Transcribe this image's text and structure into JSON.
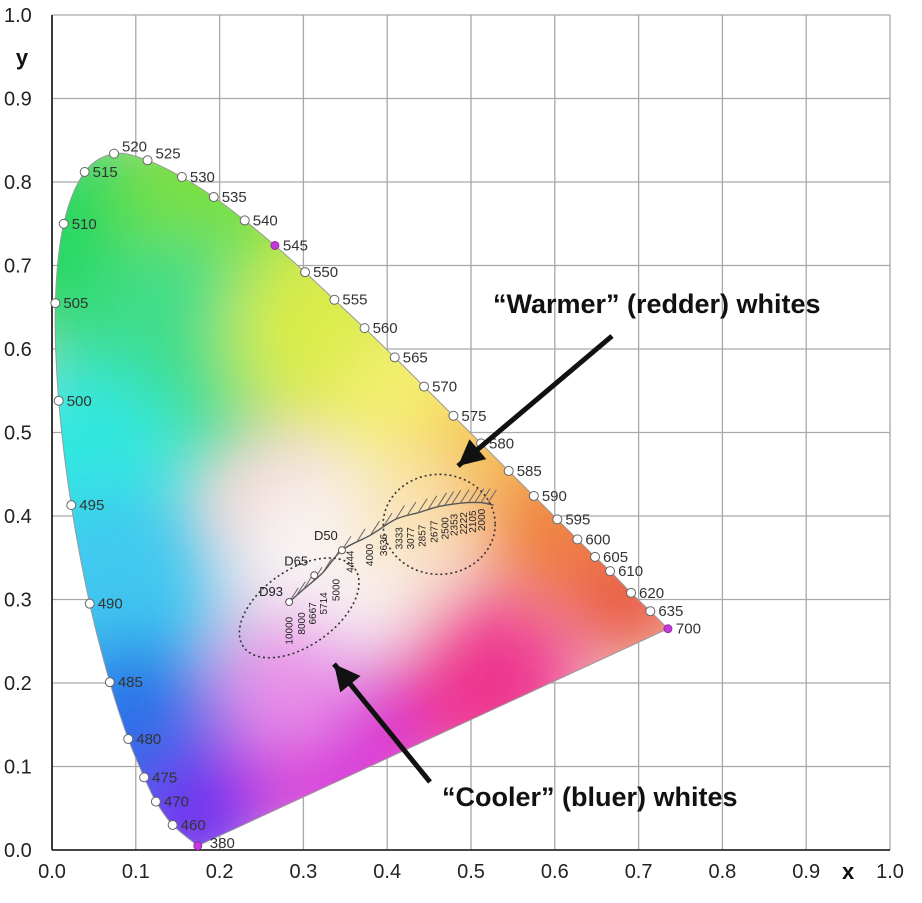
{
  "chart_data": {
    "type": "scatter",
    "xlabel": "x",
    "ylabel": "y",
    "xlim": [
      0.0,
      1.0
    ],
    "ylim": [
      0.0,
      1.0
    ],
    "grid": true,
    "x_ticks": [
      "0.0",
      "0.1",
      "0.2",
      "0.3",
      "0.4",
      "0.5",
      "0.6",
      "0.7",
      "0.8",
      "0.9",
      "1.0"
    ],
    "y_ticks": [
      "0.0",
      "0.1",
      "0.2",
      "0.3",
      "0.4",
      "0.5",
      "0.6",
      "0.7",
      "0.8",
      "0.9",
      "1.0"
    ],
    "spectral_locus": [
      {
        "nm": "380",
        "x": 0.174,
        "y": 0.005,
        "marker": "purple"
      },
      {
        "nm": "460",
        "x": 0.144,
        "y": 0.03,
        "marker": "white"
      },
      {
        "nm": "470",
        "x": 0.124,
        "y": 0.058,
        "marker": "white"
      },
      {
        "nm": "475",
        "x": 0.11,
        "y": 0.087,
        "marker": "white"
      },
      {
        "nm": "480",
        "x": 0.091,
        "y": 0.133,
        "marker": "white"
      },
      {
        "nm": "485",
        "x": 0.069,
        "y": 0.201,
        "marker": "white"
      },
      {
        "nm": "490",
        "x": 0.045,
        "y": 0.295,
        "marker": "white"
      },
      {
        "nm": "495",
        "x": 0.023,
        "y": 0.413,
        "marker": "white"
      },
      {
        "nm": "500",
        "x": 0.008,
        "y": 0.538,
        "marker": "white"
      },
      {
        "nm": "505",
        "x": 0.004,
        "y": 0.655,
        "marker": "white"
      },
      {
        "nm": "510",
        "x": 0.014,
        "y": 0.75,
        "marker": "white"
      },
      {
        "nm": "515",
        "x": 0.039,
        "y": 0.812,
        "marker": "white"
      },
      {
        "nm": "520",
        "x": 0.074,
        "y": 0.834,
        "marker": "white"
      },
      {
        "nm": "525",
        "x": 0.114,
        "y": 0.826,
        "marker": "white"
      },
      {
        "nm": "530",
        "x": 0.155,
        "y": 0.806,
        "marker": "white"
      },
      {
        "nm": "535",
        "x": 0.193,
        "y": 0.782,
        "marker": "white"
      },
      {
        "nm": "540",
        "x": 0.23,
        "y": 0.754,
        "marker": "white"
      },
      {
        "nm": "545",
        "x": 0.266,
        "y": 0.724,
        "marker": "purple"
      },
      {
        "nm": "550",
        "x": 0.302,
        "y": 0.692,
        "marker": "white"
      },
      {
        "nm": "555",
        "x": 0.337,
        "y": 0.659,
        "marker": "white"
      },
      {
        "nm": "560",
        "x": 0.373,
        "y": 0.625,
        "marker": "white"
      },
      {
        "nm": "565",
        "x": 0.409,
        "y": 0.59,
        "marker": "white"
      },
      {
        "nm": "570",
        "x": 0.444,
        "y": 0.555,
        "marker": "white"
      },
      {
        "nm": "575",
        "x": 0.479,
        "y": 0.52,
        "marker": "white"
      },
      {
        "nm": "580",
        "x": 0.512,
        "y": 0.487,
        "marker": "white"
      },
      {
        "nm": "585",
        "x": 0.545,
        "y": 0.454,
        "marker": "white"
      },
      {
        "nm": "590",
        "x": 0.575,
        "y": 0.424,
        "marker": "white"
      },
      {
        "nm": "595",
        "x": 0.603,
        "y": 0.396,
        "marker": "white"
      },
      {
        "nm": "600",
        "x": 0.627,
        "y": 0.372,
        "marker": "white"
      },
      {
        "nm": "605",
        "x": 0.648,
        "y": 0.351,
        "marker": "white"
      },
      {
        "nm": "610",
        "x": 0.666,
        "y": 0.334,
        "marker": "white"
      },
      {
        "nm": "620",
        "x": 0.691,
        "y": 0.308,
        "marker": "white"
      },
      {
        "nm": "635",
        "x": 0.714,
        "y": 0.286,
        "marker": "white"
      },
      {
        "nm": "700",
        "x": 0.735,
        "y": 0.265,
        "marker": "purple"
      }
    ],
    "white_points": [
      {
        "name": "D50",
        "x": 0.346,
        "y": 0.359
      },
      {
        "name": "D65",
        "x": 0.313,
        "y": 0.329
      },
      {
        "name": "D93",
        "x": 0.283,
        "y": 0.297
      }
    ],
    "planckian_cct": [
      "10000",
      "8000",
      "6667",
      "5714",
      "5000",
      "4444",
      "4000",
      "3636",
      "3333",
      "3077",
      "2857",
      "2677",
      "2500",
      "2353",
      "2222",
      "2105",
      "2000"
    ],
    "annotations": [
      {
        "text": "“Warmer” (redder) whites"
      },
      {
        "text": "“Cooler” (bluer) whites"
      }
    ]
  }
}
